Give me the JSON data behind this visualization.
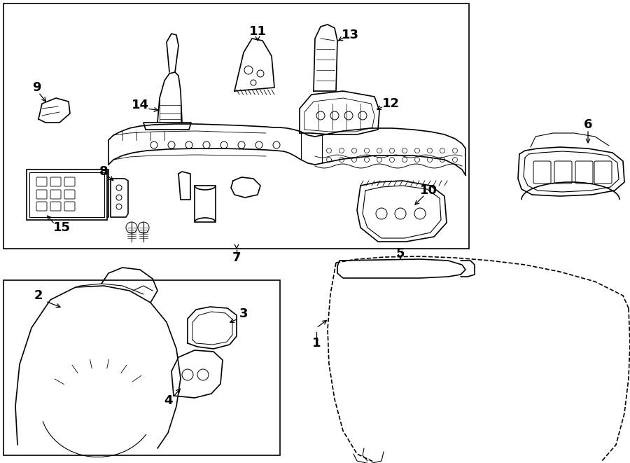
{
  "bg_color": "#ffffff",
  "line_color": "#000000",
  "figw": 9.0,
  "figh": 6.61,
  "dpi": 100,
  "font_size": 13
}
